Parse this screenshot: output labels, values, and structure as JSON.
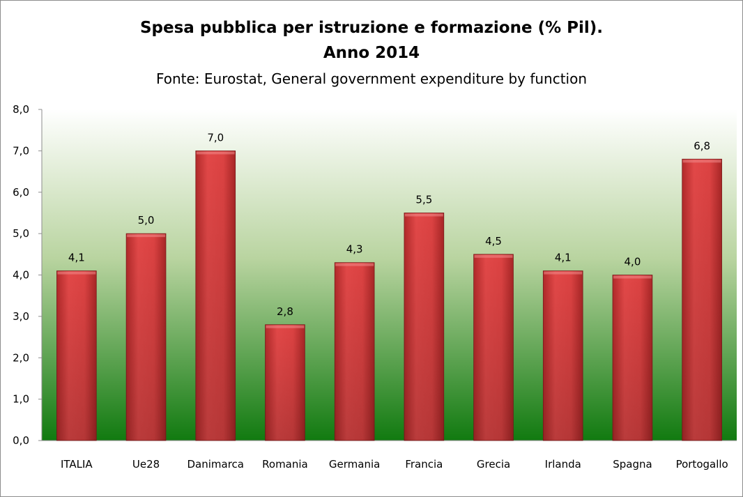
{
  "chart_data": {
    "type": "bar",
    "title_line1": "Spesa pubblica per istruzione e formazione (% Pil).",
    "title_line2": "Anno 2014",
    "subtitle": "Fonte: Eurostat, General government expenditure by function",
    "categories": [
      "ITALIA",
      "Ue28",
      "Danimarca",
      "Romania",
      "Germania",
      "Francia",
      "Grecia",
      "Irlanda",
      "Spagna",
      "Portogallo"
    ],
    "values": [
      4.1,
      5.0,
      7.0,
      2.8,
      4.3,
      5.5,
      4.5,
      4.1,
      4.0,
      6.8
    ],
    "data_labels": [
      "4,1",
      "5,0",
      "7,0",
      "2,8",
      "4,3",
      "5,5",
      "4,5",
      "4,1",
      "4,0",
      "6,8"
    ],
    "y_ticks": [
      "0,0",
      "1,0",
      "2,0",
      "3,0",
      "4,0",
      "5,0",
      "6,0",
      "7,0",
      "8,0"
    ],
    "ylim": [
      0,
      8
    ],
    "xlabel": "",
    "ylabel": "",
    "grid": false,
    "legend": false,
    "colors": {
      "bar": "#d93f3f",
      "plot_bg_top": "#ffffff",
      "plot_bg_bottom": "#117a10"
    }
  }
}
